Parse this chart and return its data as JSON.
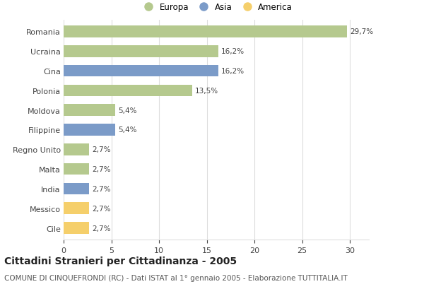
{
  "categories": [
    "Romania",
    "Ucraina",
    "Cina",
    "Polonia",
    "Moldova",
    "Filippine",
    "Regno Unito",
    "Malta",
    "India",
    "Messico",
    "Cile"
  ],
  "values": [
    29.7,
    16.2,
    16.2,
    13.5,
    5.4,
    5.4,
    2.7,
    2.7,
    2.7,
    2.7,
    2.7
  ],
  "labels": [
    "29,7%",
    "16,2%",
    "16,2%",
    "13,5%",
    "5,4%",
    "5,4%",
    "2,7%",
    "2,7%",
    "2,7%",
    "2,7%",
    "2,7%"
  ],
  "continents": [
    "Europa",
    "Europa",
    "Asia",
    "Europa",
    "Europa",
    "Asia",
    "Europa",
    "Europa",
    "Asia",
    "America",
    "America"
  ],
  "colors": {
    "Europa": "#b5c98e",
    "Asia": "#7b9bc8",
    "America": "#f5cf6b"
  },
  "xlim": [
    0,
    32
  ],
  "xticks": [
    0,
    5,
    10,
    15,
    20,
    25,
    30
  ],
  "title": "Cittadini Stranieri per Cittadinanza - 2005",
  "subtitle": "COMUNE DI CINQUEFRONDI (RC) - Dati ISTAT al 1° gennaio 2005 - Elaborazione TUTTITALIA.IT",
  "background_color": "#ffffff",
  "grid_color": "#dddddd",
  "bar_height": 0.6,
  "label_fontsize": 7.5,
  "ytick_fontsize": 8,
  "xtick_fontsize": 8,
  "title_fontsize": 10,
  "subtitle_fontsize": 7.5,
  "legend_fontsize": 8.5
}
